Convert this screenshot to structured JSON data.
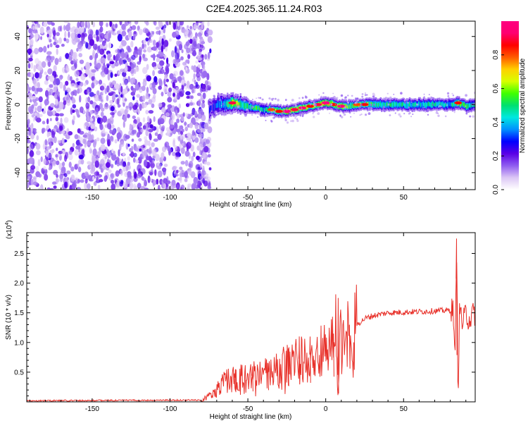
{
  "title": "C2E4.2025.365.11.24.R03",
  "chart_data": [
    {
      "type": "heatmap",
      "xlabel": "Height of straight line (km)",
      "ylabel": "Frequency (Hz)",
      "xlim": [
        -192,
        96
      ],
      "ylim": [
        -50,
        49
      ],
      "xticks": [
        -150,
        -100,
        -50,
        0,
        50
      ],
      "yticks": [
        -40,
        -20,
        0,
        20,
        40
      ],
      "colorbar": {
        "label": "Normalized spectral amplitude",
        "range": [
          0.0,
          1.0
        ],
        "ticks": [
          "0.0",
          "0.2",
          "0.4",
          "0.6",
          "0.8"
        ],
        "tick_values": [
          0.0,
          0.2,
          0.4,
          0.6,
          0.8
        ],
        "colors": [
          "#ffffff",
          "#dcc7f5",
          "#8f5cf0",
          "#5a00e6",
          "#0000ff",
          "#0090ff",
          "#00e8e0",
          "#00e070",
          "#40ff00",
          "#d8ff00",
          "#ffd000",
          "#ff5a00",
          "#ff0000",
          "#ff0070",
          "#ff0080"
        ]
      },
      "noise_region": {
        "x_range": [
          -192,
          -78
        ],
        "description_amplitude": "low (0.05-0.25)"
      },
      "ridge": [
        {
          "x": -75,
          "y": -3,
          "amp": 0.25
        },
        {
          "x": -70,
          "y": 0,
          "amp": 0.45
        },
        {
          "x": -65,
          "y": 0,
          "amp": 0.55
        },
        {
          "x": -60,
          "y": 1,
          "amp": 0.85
        },
        {
          "x": -55,
          "y": 0,
          "amp": 0.7
        },
        {
          "x": -50,
          "y": -1,
          "amp": 0.6
        },
        {
          "x": -45,
          "y": -2,
          "amp": 0.65
        },
        {
          "x": -40,
          "y": -3,
          "amp": 0.55
        },
        {
          "x": -35,
          "y": -3,
          "amp": 0.75
        },
        {
          "x": -30,
          "y": -4,
          "amp": 0.8
        },
        {
          "x": -25,
          "y": -4,
          "amp": 0.95
        },
        {
          "x": -20,
          "y": -3,
          "amp": 0.85
        },
        {
          "x": -15,
          "y": -2,
          "amp": 0.9
        },
        {
          "x": -10,
          "y": -1,
          "amp": 0.8
        },
        {
          "x": -5,
          "y": 0,
          "amp": 0.85
        },
        {
          "x": 0,
          "y": 1,
          "amp": 0.95
        },
        {
          "x": 5,
          "y": 0,
          "amp": 0.8
        },
        {
          "x": 10,
          "y": -1,
          "amp": 0.9
        },
        {
          "x": 15,
          "y": -1,
          "amp": 0.7
        },
        {
          "x": 20,
          "y": 0,
          "amp": 0.75
        },
        {
          "x": 25,
          "y": 0,
          "amp": 0.8
        },
        {
          "x": 30,
          "y": 0,
          "amp": 0.65
        },
        {
          "x": 40,
          "y": 0,
          "amp": 0.6
        },
        {
          "x": 50,
          "y": 0,
          "amp": 0.6
        },
        {
          "x": 60,
          "y": 0,
          "amp": 0.6
        },
        {
          "x": 70,
          "y": 0,
          "amp": 0.6
        },
        {
          "x": 80,
          "y": 0,
          "amp": 0.55
        },
        {
          "x": 85,
          "y": 1,
          "amp": 0.8
        },
        {
          "x": 90,
          "y": -1,
          "amp": 0.65
        },
        {
          "x": 95,
          "y": 0,
          "amp": 0.55
        }
      ]
    },
    {
      "type": "line",
      "xlabel": "Height of straight line (km)",
      "ylabel": "SNR (10 * v/v)",
      "y_multiplier": "(x10^4)",
      "y_multiplier_base": "(x10",
      "y_multiplier_exp": "4",
      "y_multiplier_close": ")",
      "xlim": [
        -192,
        96
      ],
      "ylim": [
        0,
        28500
      ],
      "xticks": [
        -150,
        -100,
        -50,
        0,
        50
      ],
      "yticks": [
        5000,
        10000,
        15000,
        20000,
        25000
      ],
      "ytick_labels": [
        "0.5",
        "1.0",
        "1.5",
        "2.0",
        "2.5"
      ],
      "color": "#e8312a",
      "series": [
        {
          "values_x": [
            -192,
            -80,
            -75,
            -70,
            -65,
            -60,
            -55,
            -50,
            -45,
            -40,
            -35,
            -30,
            -25,
            -20,
            -15,
            -10,
            -5,
            0,
            5,
            7,
            8,
            9,
            12,
            15,
            20,
            25,
            30,
            40,
            50,
            60,
            70,
            78,
            82,
            83,
            84,
            85,
            86,
            88,
            90,
            92,
            96
          ],
          "values_y": [
            200,
            300,
            1000,
            2000,
            3500,
            4000,
            4200,
            4300,
            4500,
            4800,
            5000,
            5500,
            6500,
            7000,
            7500,
            8000,
            8500,
            9500,
            10000,
            14000,
            500,
            10500,
            11000,
            12000,
            13000,
            14000,
            14500,
            15000,
            15100,
            15200,
            15300,
            15400,
            15500,
            5000,
            27500,
            1500,
            16000,
            13000,
            15000,
            14000,
            15000
          ],
          "spikes": [
            {
              "x": -58,
              "y": 5500
            },
            {
              "x": -47,
              "y": 6000
            },
            {
              "x": -37,
              "y": 6500
            },
            {
              "x": -24,
              "y": 9000
            },
            {
              "x": -17,
              "y": 9500
            },
            {
              "x": -10,
              "y": 11000
            },
            {
              "x": 5,
              "y": 11500
            },
            {
              "x": 8,
              "y": 17500
            },
            {
              "x": 84,
              "y": 27500
            }
          ]
        }
      ]
    }
  ]
}
